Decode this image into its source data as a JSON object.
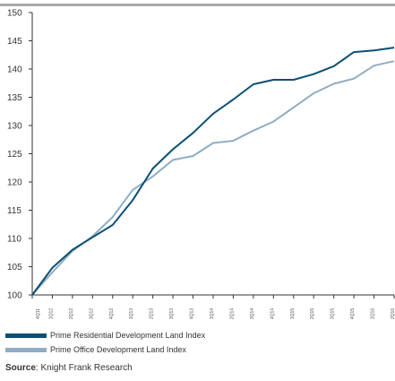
{
  "chart_data": {
    "type": "line",
    "categories": [
      "4Q11",
      "1Q12",
      "2Q12",
      "3Q12",
      "4Q12",
      "1Q13",
      "2Q13",
      "3Q13",
      "4Q13",
      "1Q14",
      "2Q14",
      "3Q14",
      "4Q14",
      "1Q15",
      "2Q15",
      "3Q15",
      "4Q15",
      "1Q16",
      "2Q16"
    ],
    "series": [
      {
        "name": "Prime Residential Development Land Index",
        "color": "#0b4f74",
        "values": [
          100,
          104.8,
          108,
          110.2,
          112.4,
          116.8,
          122.4,
          125.8,
          128.7,
          132.1,
          134.6,
          137.3,
          138.1,
          138.1,
          139.1,
          140.5,
          143.0,
          143.3,
          143.8
        ]
      },
      {
        "name": "Prime Office Development Land Index",
        "color": "#8fadc5",
        "values": [
          100,
          104.0,
          107.8,
          110.4,
          113.8,
          118.6,
          121.0,
          123.9,
          124.6,
          126.9,
          127.3,
          129.1,
          130.7,
          133.2,
          135.7,
          137.4,
          138.3,
          140.6,
          141.4
        ]
      }
    ],
    "ylim": [
      100,
      150
    ],
    "yticks": [
      100,
      105,
      110,
      115,
      120,
      125,
      130,
      135,
      140,
      145,
      150
    ],
    "legend_position": "bottom-left",
    "grid": false
  },
  "source": {
    "label": "Source",
    "text": ": Knight Frank Research"
  }
}
